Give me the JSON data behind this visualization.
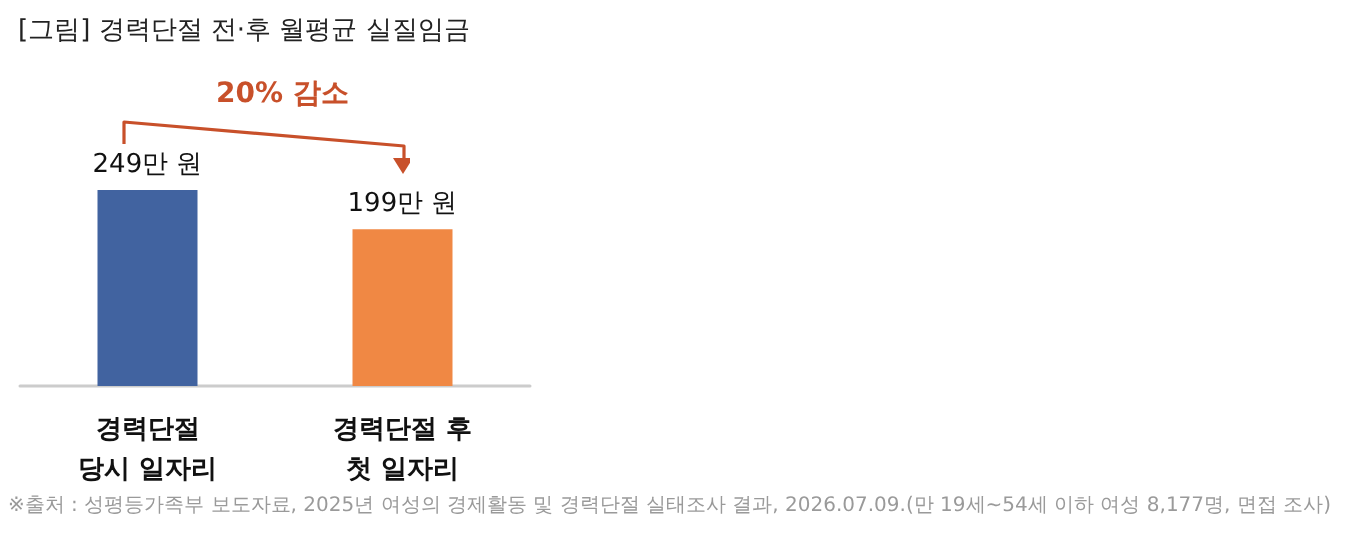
{
  "chart_data": {
    "type": "bar",
    "title": "[그림] 경력단절 전·후 월평균 실질임금",
    "categories": [
      "경력단절\n당시 일자리",
      "경력단절 후\n첫 일자리"
    ],
    "values": [
      249,
      199
    ],
    "colors": [
      "#4163a0",
      "#f08844"
    ],
    "value_labels": [
      "249만 원",
      "199만 원"
    ],
    "annotations": [
      "20% 감소",
      "※출처 : 성평등가족부 보도자료, 2025년 여성의 경제활동 및 경력단절 실태조사 결과, 2026.07.09.(만 19세~54세 이하 여성 8,177명, 면접 조사)"
    ]
  }
}
